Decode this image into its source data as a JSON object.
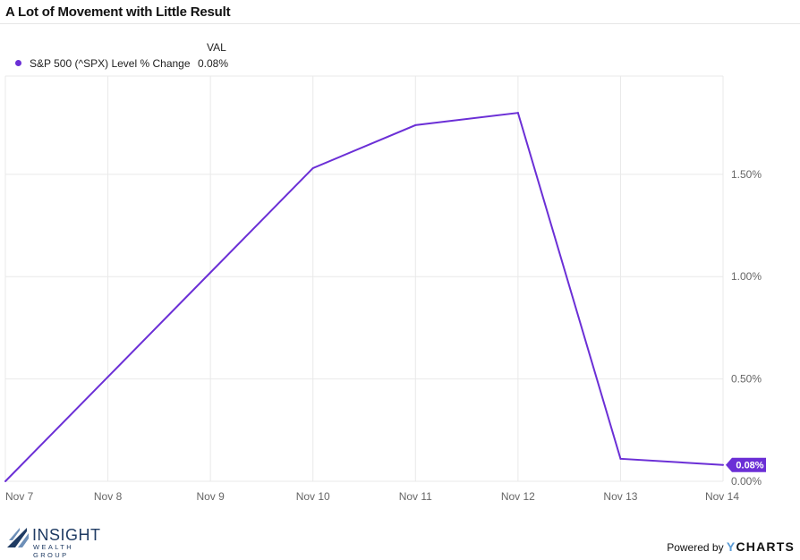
{
  "title": "A Lot of Movement with Little Result",
  "legend": {
    "header": "VAL",
    "series_name": "S&P 500 (^SPX) Level % Change",
    "series_value": "0.08%"
  },
  "colors": {
    "series": "#6b2fd6",
    "grid": "#e9e9e9",
    "axis_text": "#666666"
  },
  "chart_data": {
    "type": "line",
    "title": "A Lot of Movement with Little Result",
    "x": [
      "Nov 7",
      "Nov 8",
      "Nov 9",
      "Nov 10",
      "Nov 11",
      "Nov 12",
      "Nov 13",
      "Nov 14"
    ],
    "series": [
      {
        "name": "S&P 500 (^SPX) Level % Change",
        "values": [
          0.0,
          0.51,
          1.02,
          1.53,
          1.74,
          1.8,
          0.11,
          0.08
        ]
      }
    ],
    "ylim": [
      0,
      1.98
    ],
    "yticks": [
      0.0,
      0.5,
      1.0,
      1.5
    ],
    "ytick_labels": [
      "0.00%",
      "0.50%",
      "1.00%",
      "1.50%"
    ],
    "y_axis_side": "right",
    "last_value_label": "0.08%",
    "grid": true,
    "legend_position": "top-left"
  },
  "footer": {
    "logo_name": "INSIGHT",
    "logo_sub": "WEALTH GROUP",
    "powered_by": "Powered by",
    "brand_y": "Y",
    "brand_rest": "CHARTS"
  }
}
